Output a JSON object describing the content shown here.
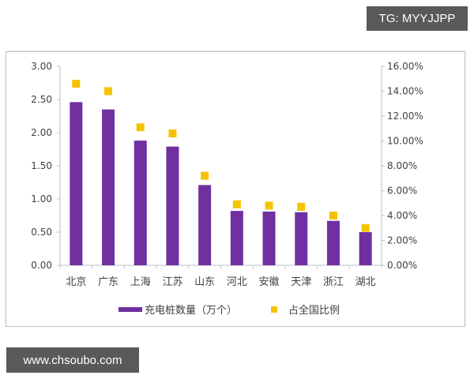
{
  "watermarks": {
    "top_right": "TG: MYYJJPP",
    "bottom_left": "www.chsoubo.com"
  },
  "colors": {
    "bar": "#7030A0",
    "marker": "#F5C200",
    "axis": "#bfbfbf",
    "text": "#404040"
  },
  "chart_data": {
    "type": "bar",
    "title": "",
    "xlabel": "",
    "ylabel": "",
    "categories": [
      "北京",
      "广东",
      "上海",
      "江苏",
      "山东",
      "河北",
      "安徽",
      "天津",
      "浙江",
      "湖北"
    ],
    "series": [
      {
        "name": "充电桩数量（万个）",
        "type": "bar",
        "axis": "left",
        "values": [
          2.46,
          2.35,
          1.88,
          1.79,
          1.21,
          0.82,
          0.81,
          0.8,
          0.67,
          0.5
        ]
      },
      {
        "name": "占全国比例",
        "type": "scatter",
        "axis": "right",
        "unit": "%",
        "values": [
          14.6,
          14.0,
          11.1,
          10.6,
          7.2,
          4.9,
          4.8,
          4.7,
          4.0,
          3.0
        ]
      }
    ],
    "ylim": [
      0,
      3.0
    ],
    "y2lim": [
      0,
      16
    ],
    "left_ticks": [
      "0.00",
      "0.50",
      "1.00",
      "1.50",
      "2.00",
      "2.50",
      "3.00"
    ],
    "right_ticks": [
      "0.00%",
      "2.00%",
      "4.00%",
      "6.00%",
      "8.00%",
      "10.00%",
      "12.00%",
      "14.00%",
      "16.00%"
    ],
    "grid": false,
    "legend_position": "bottom"
  }
}
